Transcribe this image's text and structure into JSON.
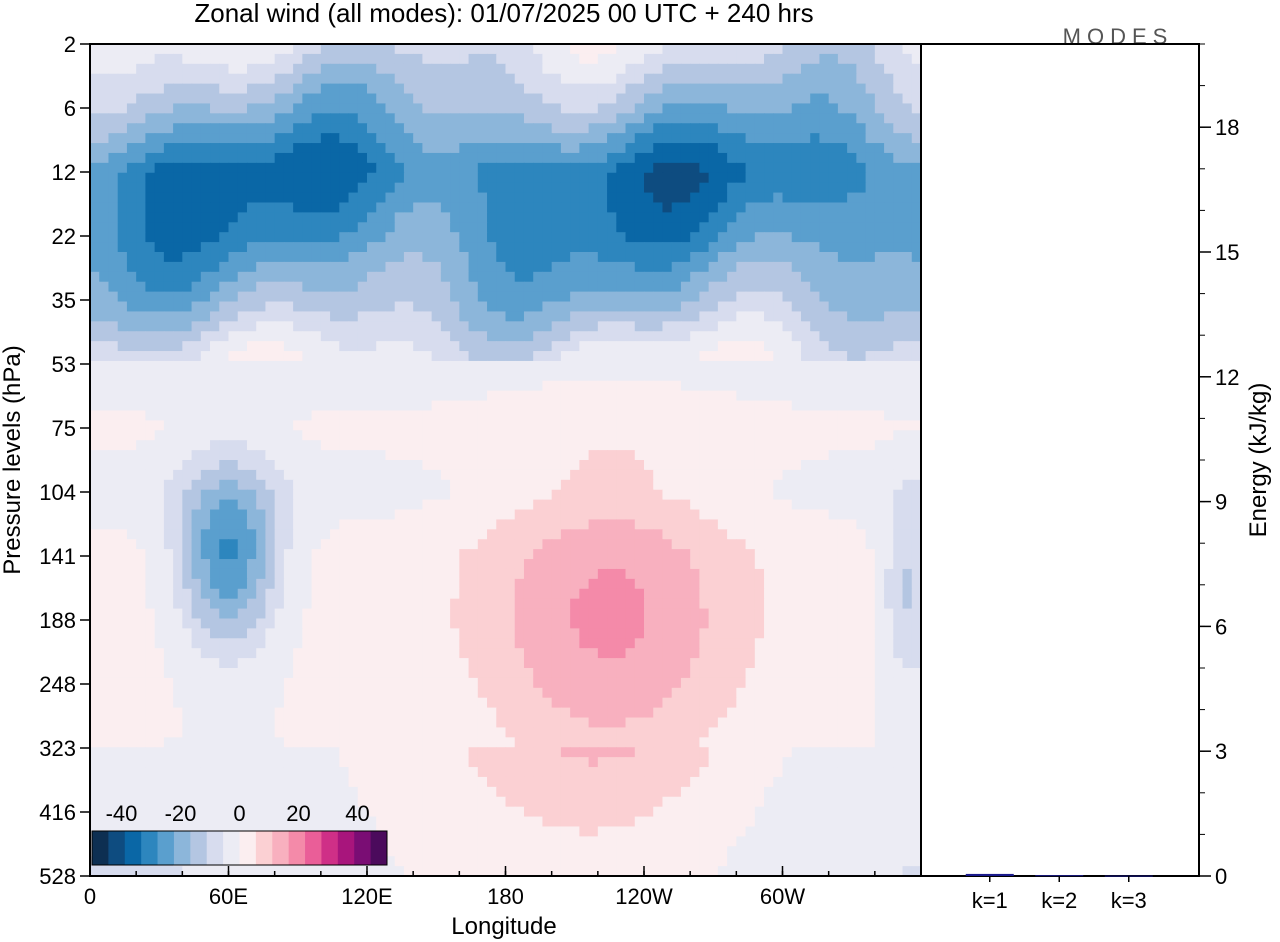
{
  "chart_data": [
    {
      "type": "heatmap",
      "title": "Zonal wind (all modes):  01/07/2025  00 UTC  + 240 hrs",
      "xlabel": "Longitude",
      "ylabel": "Pressure levels (hPa)",
      "x_ticks": [
        "0",
        "60E",
        "120E",
        "180",
        "120W",
        "60W"
      ],
      "x_tick_lon": [
        0,
        60,
        120,
        180,
        240,
        300
      ],
      "xlim": [
        0,
        360
      ],
      "y_ticks": [
        "2",
        "6",
        "12",
        "22",
        "35",
        "53",
        "75",
        "104",
        "141",
        "188",
        "248",
        "323",
        "416",
        "528"
      ],
      "colorbar": {
        "tick_labels": [
          "-40",
          "-20",
          "0",
          "20",
          "40"
        ],
        "range": [
          -50,
          50
        ],
        "colors": [
          "#0d2f52",
          "#0e4c80",
          "#0a67a6",
          "#2d86be",
          "#5a9fce",
          "#8cb6da",
          "#b4c6e2",
          "#d7dcee",
          "#ececf4",
          "#fbeef0",
          "#fbd0d3",
          "#f8b0bf",
          "#f48aa9",
          "#ea5e98",
          "#cf2f87",
          "#a8157c",
          "#7a0d74",
          "#4b0a5c"
        ]
      },
      "field_description_levels": [
        {
          "level": "2",
          "mean_u": -6
        },
        {
          "level": "6",
          "mean_u": -18
        },
        {
          "level": "12",
          "mean_u": -33
        },
        {
          "level": "22",
          "mean_u": -28
        },
        {
          "level": "35",
          "mean_u": -18
        },
        {
          "level": "53",
          "mean_u": -3
        },
        {
          "level": "75",
          "mean_u": 1
        },
        {
          "level": "104",
          "mean_u": -2
        },
        {
          "level": "141",
          "mean_u": 2
        },
        {
          "level": "188",
          "mean_u": 2
        },
        {
          "level": "248",
          "mean_u": 1
        },
        {
          "level": "323",
          "mean_u": 0
        },
        {
          "level": "416",
          "mean_u": -1
        },
        {
          "level": "528",
          "mean_u": -2
        }
      ]
    },
    {
      "type": "bar",
      "categories": [
        "k=1",
        "k=2",
        "k=3"
      ],
      "values": [
        0.05,
        0.02,
        0.01
      ],
      "ylabel": "Energy (kJ/kg)",
      "ylim": [
        0,
        20
      ],
      "y_ticks": [
        "0",
        "3",
        "6",
        "9",
        "12",
        "15",
        "18"
      ],
      "bar_color": "#1a1a8c"
    }
  ],
  "logo": "MODES"
}
